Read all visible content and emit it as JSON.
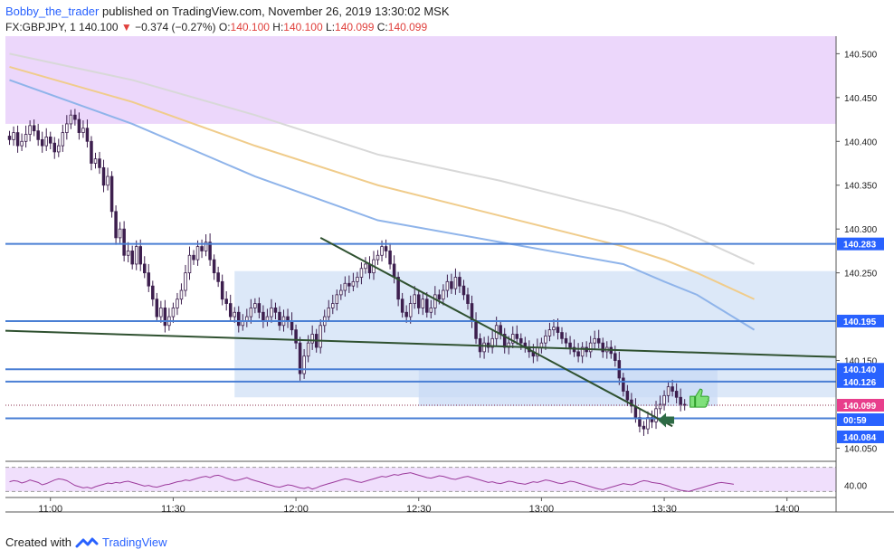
{
  "header": {
    "author": "Bobby_the_trader",
    "published": "published on TradingView.com, November 26, 2019 13:30:02 MSK"
  },
  "symbol_bar": {
    "symbol": "FX:GBPJPY, 1",
    "last": "140.100",
    "change": "−0.374 (−0.27%)",
    "o_label": "O:",
    "o": "140.100",
    "h_label": "H:",
    "h": "140.100",
    "l_label": "L:",
    "l": "140.099",
    "c_label": "C:",
    "c": "140.099"
  },
  "footer": {
    "created_with": "Created with",
    "brand": "TradingView"
  },
  "colors": {
    "up_candle": "#ffffff",
    "down_candle": "#3d1f4e",
    "level_line": "#4a7fd4",
    "trend_line": "#2f5130",
    "zone_fill": "#c9dbf5",
    "resistance_fill": "#ecd7fb",
    "ema_blue": "#8fb4ea",
    "ema_orange": "#f0cc8b",
    "ema_gray": "#d8d8d8",
    "rsi_line": "#9c3b9c",
    "price_tag": "#2962ff",
    "current_tag": "#e83e8c"
  },
  "chart_data": {
    "type": "candlestick",
    "symbol": "FX:GBPJPY",
    "timeframe": "1",
    "ylim": [
      140.035,
      140.52
    ],
    "xlim": [
      "10:49",
      "14:12"
    ],
    "y_ticks": [
      "140.500",
      "140.450",
      "140.400",
      "140.350",
      "140.300",
      "140.250",
      "140.150",
      "140.050"
    ],
    "x_ticks": [
      "11:00",
      "11:30",
      "12:00",
      "12:30",
      "13:00",
      "13:30",
      "14:00"
    ],
    "price_tags": [
      {
        "label": "140.283",
        "value": 140.283,
        "color": "#2962ff"
      },
      {
        "label": "140.195",
        "value": 140.195,
        "color": "#2962ff"
      },
      {
        "label": "140.140",
        "value": 140.14,
        "color": "#2962ff"
      },
      {
        "label": "140.126",
        "value": 140.126,
        "color": "#2962ff"
      },
      {
        "label": "140.099",
        "value": 140.099,
        "color": "#e83e8c"
      },
      {
        "label": "00:59",
        "value": 140.093,
        "color": "#2962ff"
      },
      {
        "label": "140.084",
        "value": 140.084,
        "color": "#2962ff"
      }
    ],
    "horizontal_levels": [
      140.283,
      140.195,
      140.14,
      140.126,
      140.084
    ],
    "resistance_zone": [
      140.42,
      140.52
    ],
    "range_box": {
      "from": "11:45",
      "to": "14:12",
      "low": 140.108,
      "high": 140.252
    },
    "range_box_2": {
      "from": "12:30",
      "to": "13:43",
      "low": 140.098,
      "high": 140.14
    },
    "trendlines": [
      {
        "from": [
          "10:49",
          140.184
        ],
        "to": [
          "14:12",
          140.154
        ]
      },
      {
        "from": [
          "12:06",
          140.29
        ],
        "to": [
          "13:32",
          140.075
        ]
      }
    ],
    "candles_close": [
      140.402,
      140.41,
      140.395,
      140.4,
      140.408,
      140.418,
      140.412,
      140.402,
      140.395,
      140.405,
      140.398,
      140.388,
      140.395,
      140.41,
      140.42,
      140.43,
      140.425,
      140.41,
      140.415,
      140.4,
      140.375,
      140.38,
      140.37,
      140.35,
      140.36,
      140.32,
      140.29,
      140.3,
      140.27,
      140.275,
      140.26,
      140.28,
      140.26,
      140.25,
      140.235,
      140.22,
      140.2,
      140.21,
      140.19,
      140.2,
      140.21,
      140.22,
      140.23,
      140.25,
      140.27,
      140.265,
      140.28,
      140.275,
      140.285,
      140.265,
      140.25,
      140.24,
      140.22,
      140.215,
      140.2,
      140.205,
      140.19,
      140.195,
      140.2,
      140.21,
      140.215,
      140.205,
      140.195,
      140.2,
      140.21,
      140.205,
      140.19,
      140.2,
      140.195,
      140.185,
      140.17,
      140.135,
      140.155,
      140.17,
      140.18,
      140.165,
      140.19,
      140.2,
      140.21,
      140.215,
      140.225,
      140.23,
      140.238,
      140.235,
      140.24,
      140.245,
      140.255,
      140.26,
      140.25,
      140.265,
      140.27,
      140.28,
      140.275,
      140.26,
      140.245,
      140.22,
      140.205,
      140.2,
      140.215,
      140.225,
      140.21,
      140.22,
      140.205,
      140.21,
      140.225,
      140.22,
      140.23,
      140.24,
      140.232,
      140.245,
      140.235,
      140.225,
      140.215,
      140.195,
      140.175,
      140.16,
      140.17,
      140.165,
      140.175,
      140.19,
      140.18,
      140.165,
      140.17,
      140.18,
      140.175,
      140.17,
      140.165,
      140.16,
      140.155,
      140.165,
      140.17,
      140.178,
      140.185,
      140.188,
      140.182,
      140.175,
      140.17,
      140.165,
      140.16,
      140.155,
      140.165,
      140.16,
      140.17,
      140.175,
      140.17,
      140.16,
      140.165,
      140.158,
      140.15,
      140.13,
      140.115,
      140.105,
      140.098,
      140.085,
      140.075,
      140.072,
      140.085,
      140.08,
      140.095,
      140.1,
      140.11,
      140.12,
      140.115,
      140.108,
      140.1,
      140.099
    ],
    "ema_blue": [
      [
        0,
        140.47
      ],
      [
        30,
        140.42
      ],
      [
        60,
        140.36
      ],
      [
        90,
        140.31
      ],
      [
        120,
        140.285
      ],
      [
        150,
        140.26
      ],
      [
        160,
        140.24
      ],
      [
        168,
        140.225
      ],
      [
        175,
        140.205
      ],
      [
        182,
        140.185
      ]
    ],
    "ema_orange": [
      [
        0,
        140.485
      ],
      [
        30,
        140.445
      ],
      [
        60,
        140.395
      ],
      [
        90,
        140.35
      ],
      [
        120,
        140.315
      ],
      [
        150,
        140.28
      ],
      [
        160,
        140.265
      ],
      [
        168,
        140.25
      ],
      [
        175,
        140.235
      ],
      [
        182,
        140.22
      ]
    ],
    "ema_gray": [
      [
        0,
        140.5
      ],
      [
        30,
        140.47
      ],
      [
        60,
        140.43
      ],
      [
        90,
        140.385
      ],
      [
        120,
        140.355
      ],
      [
        150,
        140.32
      ],
      [
        160,
        140.305
      ],
      [
        168,
        140.29
      ],
      [
        175,
        140.275
      ],
      [
        182,
        140.26
      ]
    ],
    "rsi": {
      "tick": "40.00",
      "values": [
        46,
        48,
        47,
        44,
        46,
        49,
        47,
        45,
        41,
        43,
        46,
        49,
        51,
        50,
        48,
        44,
        40,
        38,
        36,
        37,
        35,
        38,
        40,
        42,
        44,
        43,
        45,
        44,
        46,
        47,
        45,
        43,
        41,
        39,
        40,
        38,
        37,
        39,
        41,
        42,
        44,
        46,
        47,
        49,
        48,
        50,
        52,
        54,
        55,
        53,
        56,
        57,
        55,
        52,
        50,
        48,
        49,
        51,
        53,
        50,
        48,
        46,
        44,
        42,
        40,
        38,
        37,
        39,
        41,
        40,
        38,
        36,
        35,
        37,
        34,
        36,
        39,
        41,
        43,
        45,
        47,
        49,
        51,
        50,
        48,
        46,
        45,
        47,
        49,
        51,
        53,
        55,
        54,
        56,
        58,
        57,
        59,
        60,
        61,
        59,
        57,
        55,
        53,
        52,
        54,
        56,
        55,
        53,
        51,
        50,
        52,
        54,
        55,
        53,
        51,
        49,
        47,
        45,
        46,
        44,
        43,
        45,
        47,
        46,
        44,
        43,
        42,
        44,
        46,
        45,
        47,
        49,
        48,
        46,
        44,
        43,
        45,
        47,
        46,
        44,
        42,
        40,
        38,
        36,
        34,
        33,
        35,
        37,
        39,
        41,
        43,
        42,
        41,
        43,
        46,
        48,
        47,
        45,
        44,
        43,
        41,
        39,
        36,
        34,
        32,
        31,
        30,
        32,
        34,
        36,
        38,
        40,
        42,
        44,
        45,
        44,
        43,
        42
      ]
    }
  }
}
